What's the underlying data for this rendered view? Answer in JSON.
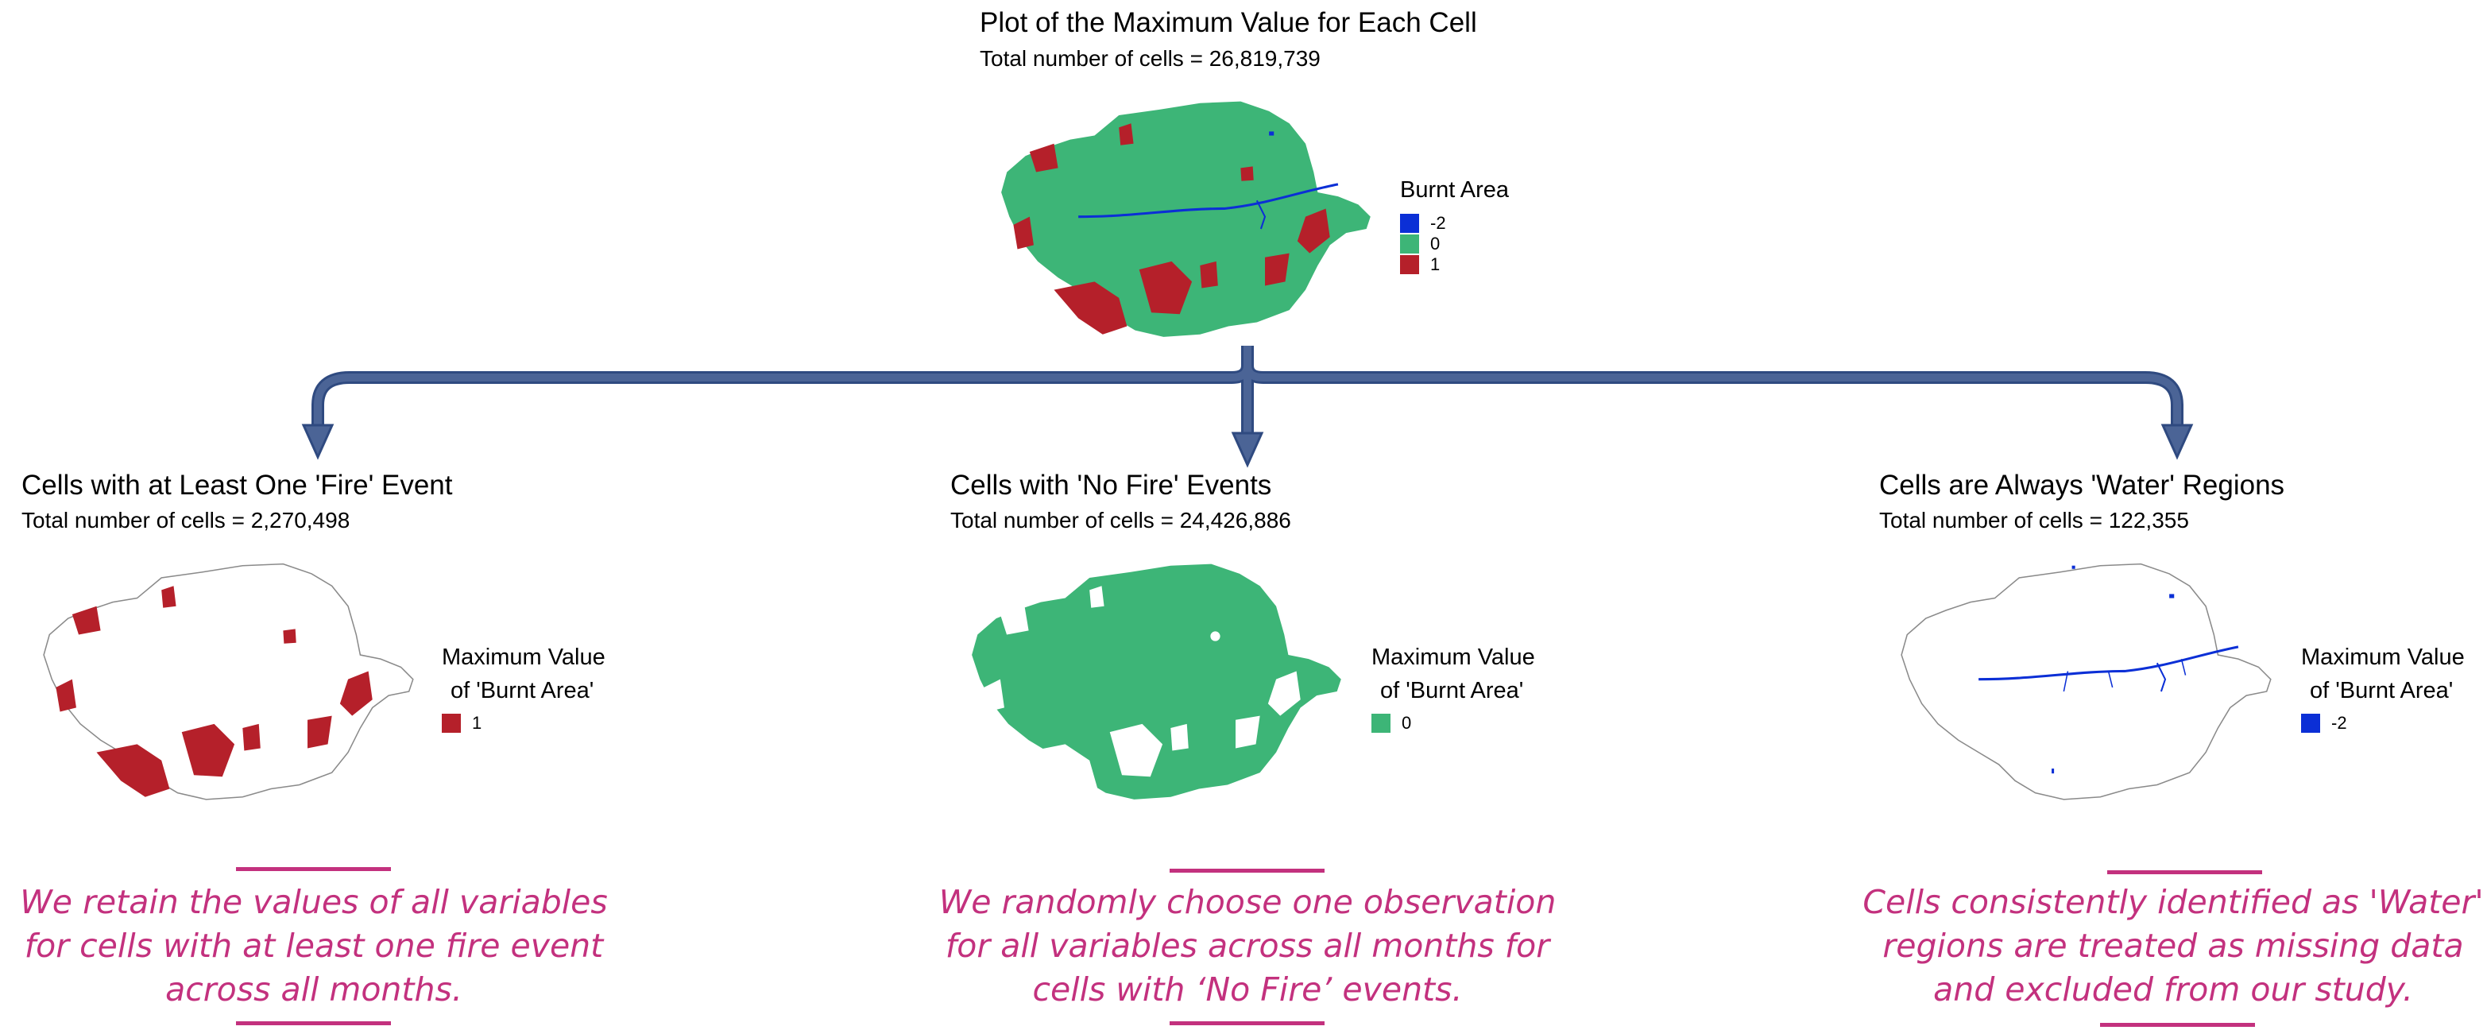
{
  "colors": {
    "water": "#0b2fd6",
    "no_fire": "#3db577",
    "fire": "#b5202a",
    "arrow": "#4b6496",
    "caption": "#c3317e"
  },
  "top": {
    "title": "Plot of the Maximum Value for Each Cell",
    "subtitle": "Total number of cells = 26,819,739",
    "legend_title": "Burnt Area",
    "legend": [
      {
        "label": "-2",
        "color": "#0b2fd6"
      },
      {
        "label": "0",
        "color": "#3db577"
      },
      {
        "label": "1",
        "color": "#b5202a"
      }
    ]
  },
  "panels": [
    {
      "title": "Cells with at Least One 'Fire' Event",
      "subtitle": "Total number of cells = 2,270,498",
      "legend_title_1": "Maximum Value",
      "legend_title_2": "of 'Burnt Area'",
      "legend_label": "1",
      "legend_color": "#b5202a",
      "caption_1": "We retain the values of all variables",
      "caption_2": "for cells with at least one fire event",
      "caption_3": "across all months."
    },
    {
      "title": "Cells with 'No Fire' Events",
      "subtitle": "Total number of cells = 24,426,886",
      "legend_title_1": "Maximum Value",
      "legend_title_2": "of 'Burnt Area'",
      "legend_label": "0",
      "legend_color": "#3db577",
      "caption_1": "We randomly choose one observation",
      "caption_2": "for all variables across all months for",
      "caption_3": "cells with ‘No Fire’ events."
    },
    {
      "title": "Cells are Always 'Water' Regions",
      "subtitle": "Total number of cells = 122,355",
      "legend_title_1": "Maximum Value",
      "legend_title_2": "of 'Burnt Area'",
      "legend_label": "-2",
      "legend_color": "#0b2fd6",
      "caption_1": "Cells consistently identified as 'Water'",
      "caption_2": "regions are treated as missing data",
      "caption_3": "and excluded from our study."
    }
  ]
}
